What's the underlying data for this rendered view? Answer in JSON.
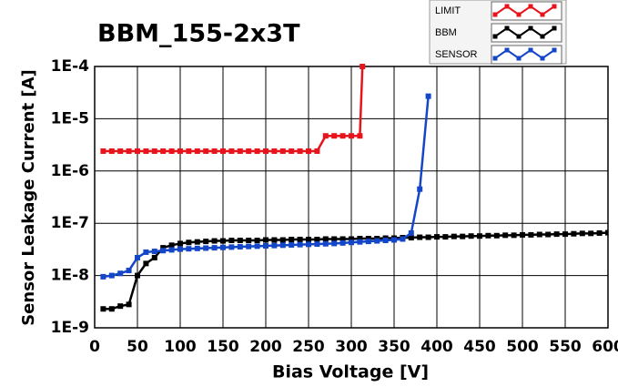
{
  "chart_data": {
    "type": "line",
    "title": "BBM_155-2x3T",
    "xlabel": "Bias Voltage [V]",
    "ylabel": "Sensor Leakage Current [A]",
    "xlim": [
      0,
      600
    ],
    "xticks": [
      0,
      50,
      100,
      150,
      200,
      250,
      300,
      350,
      400,
      450,
      500,
      550,
      600
    ],
    "ylim": [
      1e-09,
      0.0001
    ],
    "ylog": true,
    "yticks": [
      {
        "value": 1e-09,
        "label": "1E-9"
      },
      {
        "value": 1e-08,
        "label": "1E-8"
      },
      {
        "value": 1e-07,
        "label": "1E-7"
      },
      {
        "value": 1e-06,
        "label": "1E-6"
      },
      {
        "value": 1e-05,
        "label": "1E-5"
      },
      {
        "value": 0.0001,
        "label": "1E-4"
      }
    ],
    "grid": true,
    "legend": "top-right",
    "series": [
      {
        "name": "LIMIT",
        "color": "#e8141c",
        "x": [
          10,
          20,
          30,
          40,
          50,
          60,
          70,
          80,
          90,
          100,
          110,
          120,
          130,
          140,
          150,
          160,
          170,
          180,
          190,
          200,
          210,
          220,
          230,
          240,
          250,
          260,
          270,
          280,
          290,
          300,
          310,
          313
        ],
        "values": [
          2.4e-06,
          2.4e-06,
          2.4e-06,
          2.4e-06,
          2.4e-06,
          2.4e-06,
          2.4e-06,
          2.4e-06,
          2.4e-06,
          2.4e-06,
          2.4e-06,
          2.4e-06,
          2.4e-06,
          2.4e-06,
          2.4e-06,
          2.4e-06,
          2.4e-06,
          2.4e-06,
          2.4e-06,
          2.4e-06,
          2.4e-06,
          2.4e-06,
          2.4e-06,
          2.4e-06,
          2.4e-06,
          2.4e-06,
          4.7e-06,
          4.7e-06,
          4.7e-06,
          4.7e-06,
          4.7e-06,
          0.0001
        ]
      },
      {
        "name": "BBM",
        "color": "#000000",
        "x": [
          10,
          20,
          30,
          40,
          50,
          60,
          70,
          80,
          90,
          100,
          110,
          120,
          130,
          140,
          150,
          160,
          170,
          180,
          190,
          200,
          210,
          220,
          230,
          240,
          250,
          260,
          270,
          280,
          290,
          300,
          310,
          320,
          330,
          340,
          350,
          360,
          370,
          380,
          390,
          400,
          410,
          420,
          430,
          440,
          450,
          460,
          470,
          480,
          490,
          500,
          510,
          520,
          530,
          540,
          550,
          560,
          570,
          580,
          590,
          600
        ],
        "values": [
          2.3e-09,
          2.3e-09,
          2.6e-09,
          2.8e-09,
          1e-08,
          1.7e-08,
          2.2e-08,
          3.4e-08,
          3.8e-08,
          4.1e-08,
          4.3e-08,
          4.4e-08,
          4.5e-08,
          4.6e-08,
          4.6e-08,
          4.7e-08,
          4.7e-08,
          4.7e-08,
          4.7e-08,
          4.8e-08,
          4.8e-08,
          4.8e-08,
          4.9e-08,
          4.9e-08,
          4.9e-08,
          4.9e-08,
          5e-08,
          5e-08,
          5e-08,
          5e-08,
          5.1e-08,
          5.1e-08,
          5.1e-08,
          5.2e-08,
          5.2e-08,
          5.3e-08,
          5.3e-08,
          5.4e-08,
          5.4e-08,
          5.5e-08,
          5.5e-08,
          5.6e-08,
          5.6e-08,
          5.7e-08,
          5.7e-08,
          5.8e-08,
          5.8e-08,
          5.9e-08,
          5.9e-08,
          6e-08,
          6e-08,
          6.1e-08,
          6.1e-08,
          6.2e-08,
          6.2e-08,
          6.3e-08,
          6.4e-08,
          6.4e-08,
          6.5e-08,
          6.6e-08
        ]
      },
      {
        "name": "SENSOR",
        "color": "#1446c8",
        "x": [
          10,
          20,
          30,
          40,
          50,
          60,
          70,
          80,
          90,
          100,
          110,
          120,
          130,
          140,
          150,
          160,
          170,
          180,
          190,
          200,
          210,
          220,
          230,
          240,
          250,
          260,
          270,
          280,
          290,
          300,
          310,
          320,
          330,
          340,
          350,
          360,
          370,
          380,
          390
        ],
        "values": [
          9.5e-09,
          1e-08,
          1.1e-08,
          1.25e-08,
          2.2e-08,
          2.8e-08,
          2.9e-08,
          3e-08,
          3.1e-08,
          3.2e-08,
          3.25e-08,
          3.3e-08,
          3.35e-08,
          3.4e-08,
          3.45e-08,
          3.5e-08,
          3.55e-08,
          3.6e-08,
          3.65e-08,
          3.7e-08,
          3.75e-08,
          3.8e-08,
          3.85e-08,
          3.9e-08,
          3.95e-08,
          4e-08,
          4.05e-08,
          4.1e-08,
          4.2e-08,
          4.3e-08,
          4.4e-08,
          4.5e-08,
          4.6e-08,
          4.7e-08,
          4.8e-08,
          5e-08,
          6.5e-08,
          4.5e-07,
          2.7e-05
        ]
      }
    ]
  }
}
